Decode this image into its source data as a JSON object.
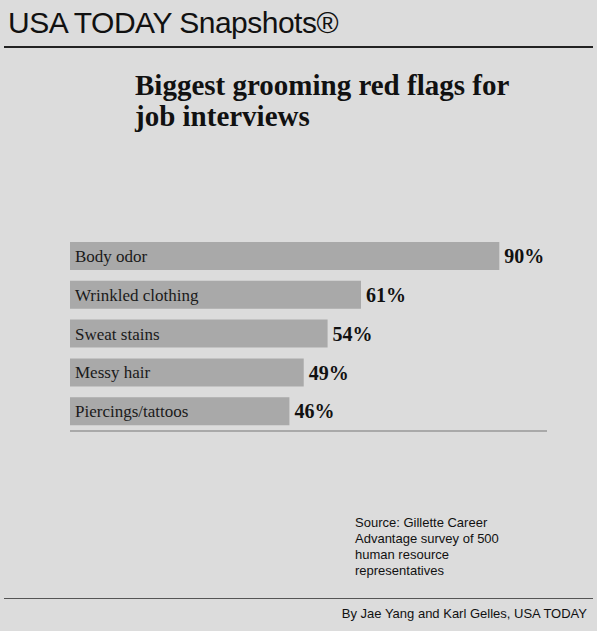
{
  "header": "USA TODAY Snapshots®",
  "byline": "By Jae Yang and Karl Gelles, USA TODAY",
  "chart_data": {
    "type": "bar",
    "orientation": "horizontal",
    "title": "Biggest grooming red flags for job interviews",
    "categories": [
      "Body odor",
      "Wrinkled clothing",
      "Sweat stains",
      "Messy hair",
      "Piercings/tattoos"
    ],
    "values": [
      90,
      61,
      54,
      49,
      46
    ],
    "value_labels": [
      "90%",
      "61%",
      "54%",
      "49%",
      "46%"
    ],
    "data_labels": true,
    "tick_labels": false,
    "xlim": [
      0,
      100
    ],
    "color": "#a9a9a9",
    "grid": false,
    "annotations": [
      "Source: Gillette Career Advantage survey of 500 human resource representatives"
    ]
  }
}
